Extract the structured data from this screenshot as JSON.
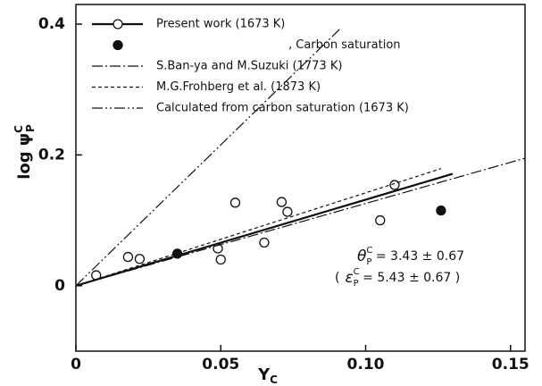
{
  "chart_data": {
    "type": "scatter",
    "xlim": [
      0,
      0.155
    ],
    "ylim": [
      -0.1,
      0.43
    ],
    "xticks": [
      0,
      0.05,
      {
        "value": 0.1,
        "label": "0.10"
      },
      0.15
    ],
    "yticks": [
      0,
      0.2,
      0.4
    ],
    "x_label": {
      "main": "Y",
      "sub": "C"
    },
    "y_label": {
      "main": "log ψ",
      "sub": "P",
      "sup": "C"
    },
    "series": [
      {
        "name": "Present work (1673 K)",
        "style": "solid",
        "marker": "open",
        "x": [
          0.007,
          0.018,
          0.022,
          0.049,
          0.05,
          0.055,
          0.065,
          0.071,
          0.073,
          0.105,
          0.11
        ],
        "values": [
          0.016,
          0.044,
          0.041,
          0.057,
          0.04,
          0.127,
          0.066,
          0.128,
          0.113,
          0.1,
          0.154
        ],
        "fit_x": [
          0,
          0.13
        ],
        "fit_values": [
          0,
          0.171
        ]
      },
      {
        "name": ", Carbon saturation",
        "style": null,
        "marker": "filled",
        "x": [
          0.035,
          0.126
        ],
        "values": [
          0.049,
          0.115
        ]
      },
      {
        "name": "S.Ban-ya  and  M.Suzuki (1773 K)",
        "style": "dashdot",
        "marker": null,
        "x": [
          0,
          0.155
        ],
        "values": [
          0,
          0.195
        ]
      },
      {
        "name": "M.G.Frohberg et al. (1873 K)",
        "style": "dashed",
        "marker": null,
        "x": [
          0,
          0.126
        ],
        "values": [
          0,
          0.179
        ]
      },
      {
        "name": "Calculated from carbon saturation (1673 K)",
        "style": "dashdotdot",
        "marker": null,
        "x": [
          0,
          0.091
        ],
        "values": [
          0,
          0.392
        ]
      }
    ],
    "annotations": [
      {
        "sym": "θ",
        "sub": "P",
        "sup": "C",
        "text": " = 3.43 ± 0.67"
      },
      {
        "open": "(",
        "sym": "ε",
        "sub": "P",
        "sup": "C",
        "text": " = 5.43 ± 0.67 )"
      }
    ]
  }
}
